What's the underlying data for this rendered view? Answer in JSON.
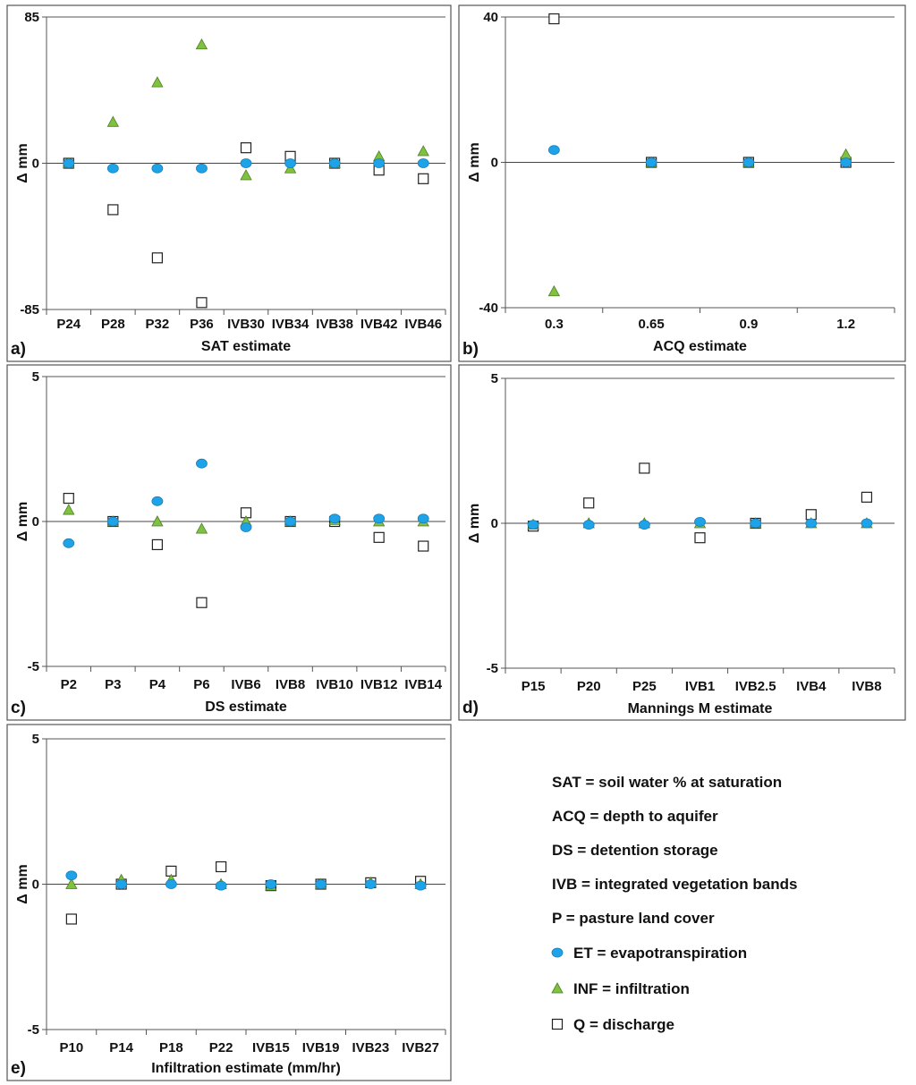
{
  "colors": {
    "et": "#1fa3e8",
    "inf": "#7fc241",
    "q": "#ffffff"
  },
  "chart_data": [
    {
      "id": "a",
      "type": "scatter",
      "panel_label": "a)",
      "xlabel": "SAT estimate",
      "ylabel": "Δ mm",
      "ylim": [
        -85,
        85
      ],
      "yticks": [
        "85",
        "0",
        "-85"
      ],
      "categories": [
        "P24",
        "P28",
        "P32",
        "P36",
        "IVB30",
        "IVB34",
        "IVB38",
        "IVB42",
        "IVB46"
      ],
      "series": [
        {
          "name": "ET",
          "marker": "circle",
          "values": [
            0,
            -3,
            -3,
            -3,
            0,
            0,
            0,
            0,
            0
          ]
        },
        {
          "name": "INF",
          "marker": "triangle",
          "values": [
            0,
            24,
            47,
            69,
            -7,
            -3,
            0,
            4,
            7
          ]
        },
        {
          "name": "Q",
          "marker": "square",
          "values": [
            0,
            -27,
            -55,
            -81,
            9,
            4,
            0,
            -4,
            -9
          ]
        }
      ]
    },
    {
      "id": "b",
      "type": "scatter",
      "panel_label": "b)",
      "xlabel": "ACQ estimate",
      "ylabel": "Δ mm",
      "ylim": [
        -40,
        40
      ],
      "yticks": [
        "40",
        "0",
        "-40"
      ],
      "categories": [
        "0.3",
        "0.65",
        "0.9",
        "1.2"
      ],
      "series": [
        {
          "name": "ET",
          "marker": "circle",
          "values": [
            3.4,
            0,
            0,
            0
          ]
        },
        {
          "name": "INF",
          "marker": "triangle",
          "values": [
            -35.5,
            0,
            0,
            2.2
          ]
        },
        {
          "name": "Q",
          "marker": "square",
          "values": [
            39.5,
            0,
            0,
            0
          ]
        }
      ]
    },
    {
      "id": "c",
      "type": "scatter",
      "panel_label": "c)",
      "xlabel": "DS estimate",
      "ylabel": "Δ mm",
      "ylim": [
        -5,
        5
      ],
      "yticks": [
        "5",
        "0",
        "-5"
      ],
      "categories": [
        "P2",
        "P3",
        "P4",
        "P6",
        "IVB6",
        "IVB8",
        "IVB10",
        "IVB12",
        "IVB14"
      ],
      "series": [
        {
          "name": "ET",
          "marker": "circle",
          "values": [
            -0.75,
            0,
            0.7,
            2.0,
            -0.2,
            0,
            0.1,
            0.1,
            0.1
          ]
        },
        {
          "name": "INF",
          "marker": "triangle",
          "values": [
            0.4,
            0,
            0,
            -0.25,
            0,
            0,
            0.05,
            0,
            0
          ]
        },
        {
          "name": "Q",
          "marker": "square",
          "values": [
            0.8,
            0,
            -0.8,
            -2.8,
            0.3,
            0,
            0,
            -0.55,
            -0.85
          ]
        }
      ]
    },
    {
      "id": "d",
      "type": "scatter",
      "panel_label": "d)",
      "xlabel": "Mannings M estimate",
      "ylabel": "Δ mm",
      "ylim": [
        -5,
        5
      ],
      "yticks": [
        "5",
        "0",
        "-5"
      ],
      "categories": [
        "P15",
        "P20",
        "P25",
        "IVB1",
        "IVB2.5",
        "IVB4",
        "IVB8"
      ],
      "series": [
        {
          "name": "ET",
          "marker": "circle",
          "values": [
            -0.05,
            -0.05,
            -0.05,
            0.05,
            0,
            0,
            0
          ]
        },
        {
          "name": "INF",
          "marker": "triangle",
          "values": [
            -0.05,
            0,
            0,
            0,
            0,
            0,
            0
          ]
        },
        {
          "name": "Q",
          "marker": "square",
          "values": [
            -0.1,
            0.7,
            1.9,
            -0.5,
            0,
            0.3,
            0.9
          ]
        }
      ]
    },
    {
      "id": "e",
      "type": "scatter",
      "panel_label": "e)",
      "xlabel": "Infiltration estimate (mm/hr)",
      "ylabel": "Δ mm",
      "ylim": [
        -5,
        5
      ],
      "yticks": [
        "5",
        "0",
        "-5"
      ],
      "categories": [
        "P10",
        "P14",
        "P18",
        "P22",
        "IVB15",
        "IVB19",
        "IVB23",
        "IVB27"
      ],
      "series": [
        {
          "name": "ET",
          "marker": "circle",
          "values": [
            0.3,
            0,
            0,
            -0.05,
            0,
            0,
            0,
            -0.05
          ]
        },
        {
          "name": "INF",
          "marker": "triangle",
          "values": [
            0,
            0.15,
            0.15,
            0,
            -0.05,
            0,
            0.05,
            0
          ]
        },
        {
          "name": "Q",
          "marker": "square",
          "values": [
            -1.2,
            0,
            0.45,
            0.6,
            -0.05,
            0,
            0.05,
            0.1
          ]
        }
      ]
    }
  ],
  "legend": {
    "definitions": [
      "SAT = soil water % at saturation",
      "ACQ = depth to aquifer",
      "DS = detention storage",
      "IVB = integrated vegetation bands",
      "P = pasture land cover"
    ],
    "items": [
      {
        "marker": "circle",
        "label": "ET = evapotranspiration"
      },
      {
        "marker": "triangle",
        "label": "INF = infiltration"
      },
      {
        "marker": "square",
        "label": "Q = discharge"
      }
    ]
  }
}
